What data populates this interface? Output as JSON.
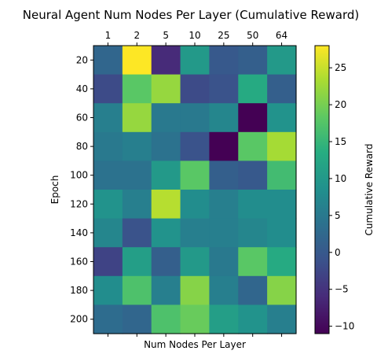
{
  "chart_data": {
    "type": "heatmap",
    "title": "Neural Agent Num Nodes Per Layer (Cumulative Reward)",
    "xlabel": "Num Nodes Per Layer",
    "ylabel": "Epoch",
    "x_categories": [
      "1",
      "2",
      "5",
      "10",
      "25",
      "50",
      "64"
    ],
    "x_tick_position": "top",
    "y_categories": [
      "20",
      "40",
      "60",
      "80",
      "100",
      "120",
      "140",
      "160",
      "180",
      "200"
    ],
    "values": [
      [
        2,
        28,
        -6,
        10,
        0,
        1,
        10
      ],
      [
        -2,
        18,
        22,
        -2,
        -1,
        13,
        1
      ],
      [
        6,
        22,
        5,
        5,
        7,
        -11,
        9
      ],
      [
        5,
        6,
        4,
        -1,
        -11,
        18,
        23
      ],
      [
        4,
        4,
        10,
        18,
        1,
        0,
        16
      ],
      [
        9,
        6,
        24,
        8,
        6,
        8,
        8
      ],
      [
        7,
        -1,
        9,
        6,
        6,
        7,
        8
      ],
      [
        -3,
        11,
        1,
        10,
        5,
        18,
        13
      ],
      [
        8,
        17,
        6,
        21,
        6,
        2,
        21
      ],
      [
        3,
        2,
        17,
        19,
        11,
        9,
        6
      ]
    ],
    "colormap": "viridis",
    "colorbar": {
      "label": "Cumulative Reward",
      "vmin": -11,
      "vmax": 28,
      "ticks": [
        -10,
        -5,
        0,
        5,
        10,
        15,
        20,
        25
      ],
      "tick_labels": [
        "−10",
        "−5",
        "0",
        "5",
        "10",
        "15",
        "20",
        "25"
      ]
    },
    "grid": false,
    "legend": "none"
  }
}
